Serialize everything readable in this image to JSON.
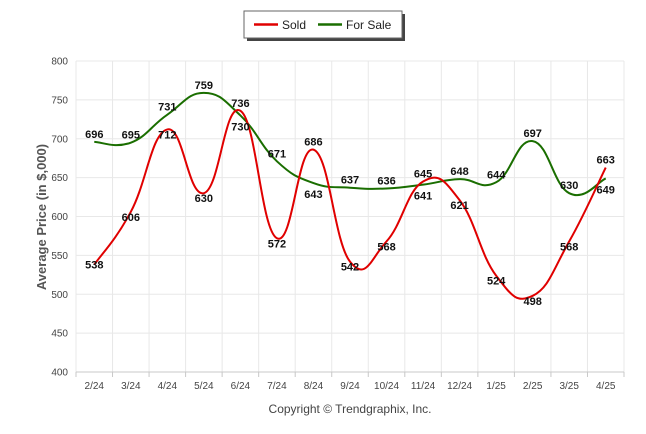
{
  "chart_data": {
    "type": "line",
    "categories": [
      "2/24",
      "3/24",
      "4/24",
      "5/24",
      "6/24",
      "7/24",
      "8/24",
      "9/24",
      "10/24",
      "11/24",
      "12/24",
      "1/25",
      "2/25",
      "3/25",
      "4/25"
    ],
    "series": [
      {
        "name": "Sold",
        "color": "#e00000",
        "values": [
          538,
          606,
          712,
          630,
          736,
          572,
          686,
          542,
          568,
          645,
          621,
          524,
          498,
          568,
          663
        ]
      },
      {
        "name": "For Sale",
        "color": "#1a6e00",
        "values": [
          696,
          695,
          731,
          759,
          730,
          671,
          643,
          637,
          636,
          641,
          648,
          644,
          697,
          630,
          649
        ]
      }
    ],
    "ylabel": "Average Price (in $,000)",
    "ylim": [
      400,
      800
    ],
    "yticks": [
      400,
      450,
      500,
      550,
      600,
      650,
      700,
      750,
      800
    ],
    "grid": true,
    "legend": "top-center"
  },
  "footer": "Copyright © Trendgraphix, Inc."
}
